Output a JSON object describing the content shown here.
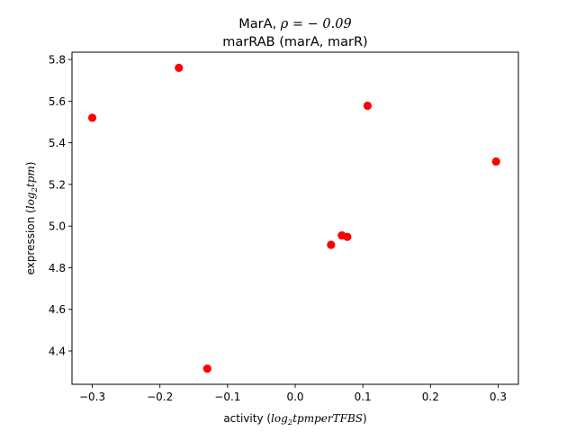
{
  "chart_data": {
    "type": "scatter",
    "title_line1_prefix": "MarA, ",
    "title_line1_math": "ρ = − 0.09",
    "title_line2": "marRAB (marA, marR)",
    "xlabel_prefix": "activity (",
    "xlabel_math_log": "log",
    "xlabel_math_sub": "2",
    "xlabel_math_rest": "tpmperTFBS",
    "xlabel_suffix": ")",
    "ylabel_prefix": "expression (",
    "ylabel_math_log": "log",
    "ylabel_math_sub": "2",
    "ylabel_math_rest": "tpm",
    "ylabel_suffix": ")",
    "xlim": [
      -0.33,
      0.33
    ],
    "ylim": [
      4.24,
      5.835
    ],
    "xticks": [
      -0.3,
      -0.2,
      -0.1,
      0.0,
      0.1,
      0.2,
      0.3
    ],
    "xtick_labels": [
      "−0.3",
      "−0.2",
      "−0.1",
      "0.0",
      "0.1",
      "0.2",
      "0.3"
    ],
    "yticks": [
      4.4,
      4.6,
      4.8,
      5.0,
      5.2,
      5.4,
      5.6,
      5.8
    ],
    "ytick_labels": [
      "4.4",
      "4.6",
      "4.8",
      "5.0",
      "5.2",
      "5.4",
      "5.6",
      "5.8"
    ],
    "marker_color": "#ff0000",
    "grid": false,
    "points": [
      {
        "x": -0.3,
        "y": 5.52
      },
      {
        "x": -0.172,
        "y": 5.76
      },
      {
        "x": -0.13,
        "y": 4.315
      },
      {
        "x": 0.053,
        "y": 4.91
      },
      {
        "x": 0.069,
        "y": 4.955
      },
      {
        "x": 0.077,
        "y": 4.948
      },
      {
        "x": 0.107,
        "y": 5.578
      },
      {
        "x": 0.297,
        "y": 5.31
      }
    ]
  }
}
